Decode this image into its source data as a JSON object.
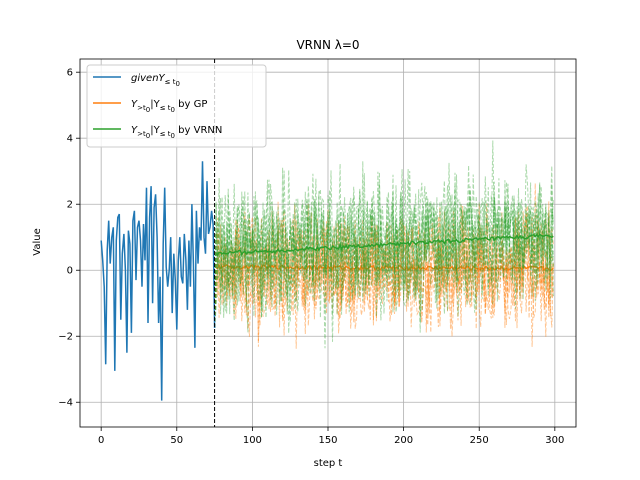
{
  "chart_data": {
    "type": "line",
    "title": "VRNN λ=0",
    "xlabel": "step t",
    "ylabel": "Value",
    "xlim": [
      -14,
      314
    ],
    "ylim": [
      -4.75,
      6.4
    ],
    "xticks": [
      0,
      50,
      100,
      150,
      200,
      250,
      300
    ],
    "yticks": [
      -4,
      -2,
      0,
      2,
      4,
      6
    ],
    "grid": true,
    "legend_position": "top-left",
    "vline": {
      "x": 75,
      "style": "dashed",
      "color": "#000000"
    },
    "colors": {
      "given": "#1f77b4",
      "gp": "#ff7f0e",
      "vrnn": "#2ca02c"
    },
    "legend": {
      "given": {
        "prefix": "given",
        "main": "Y",
        "sub": "≤ t",
        "subsub": "0",
        "suffix": ""
      },
      "gp": {
        "main": "Y",
        "sub": ">t",
        "subsub": "0",
        "mid": "|Y",
        "sub2": "≤ t",
        "subsub2": "0",
        "suffix": " by GP"
      },
      "vrnn": {
        "main": "Y",
        "sub": ">t",
        "subsub": "0",
        "mid": "|Y",
        "sub2": "≤ t",
        "subsub2": "0",
        "suffix": " by VRNN"
      }
    },
    "series": [
      {
        "key": "given",
        "x_start": 0,
        "x_step": 1,
        "values": [
          0.9,
          0.3,
          -0.5,
          -2.85,
          0.6,
          1.5,
          0.2,
          1.0,
          1.3,
          -3.05,
          0.9,
          1.6,
          1.7,
          -1.5,
          0.5,
          1.1,
          0.0,
          -2.5,
          1.2,
          0.8,
          -1.9,
          1.5,
          1.8,
          -0.3,
          1.3,
          1.5,
          0.9,
          -0.5,
          1.4,
          0.3,
          2.5,
          -1.6,
          1.6,
          2.55,
          -1.0,
          1.9,
          2.3,
          1.0,
          -1.6,
          -0.2,
          -3.95,
          0.8,
          2.5,
          0.1,
          -0.5,
          0.0,
          1.0,
          -1.3,
          0.5,
          -0.3,
          -1.8,
          0.3,
          1.0,
          -0.2,
          -0.4,
          1.1,
          0.3,
          -1.2,
          0.9,
          -0.5,
          2.0,
          0.2,
          -2.35,
          1.8,
          0.2,
          1.3,
          0.9,
          3.3,
          1.0,
          0.5,
          2.7,
          1.1,
          1.3,
          1.8,
          1.4,
          -1.75
        ]
      }
    ],
    "forecast": {
      "x_start": 76,
      "x_end": 299,
      "gp": {
        "mean_start": 0.1,
        "mean_end": 0.05,
        "spread": 1.4,
        "samples": 6
      },
      "vrnn": {
        "mean_start": 0.5,
        "mean_end": 1.05,
        "spread": 1.6,
        "samples": 8
      }
    }
  }
}
